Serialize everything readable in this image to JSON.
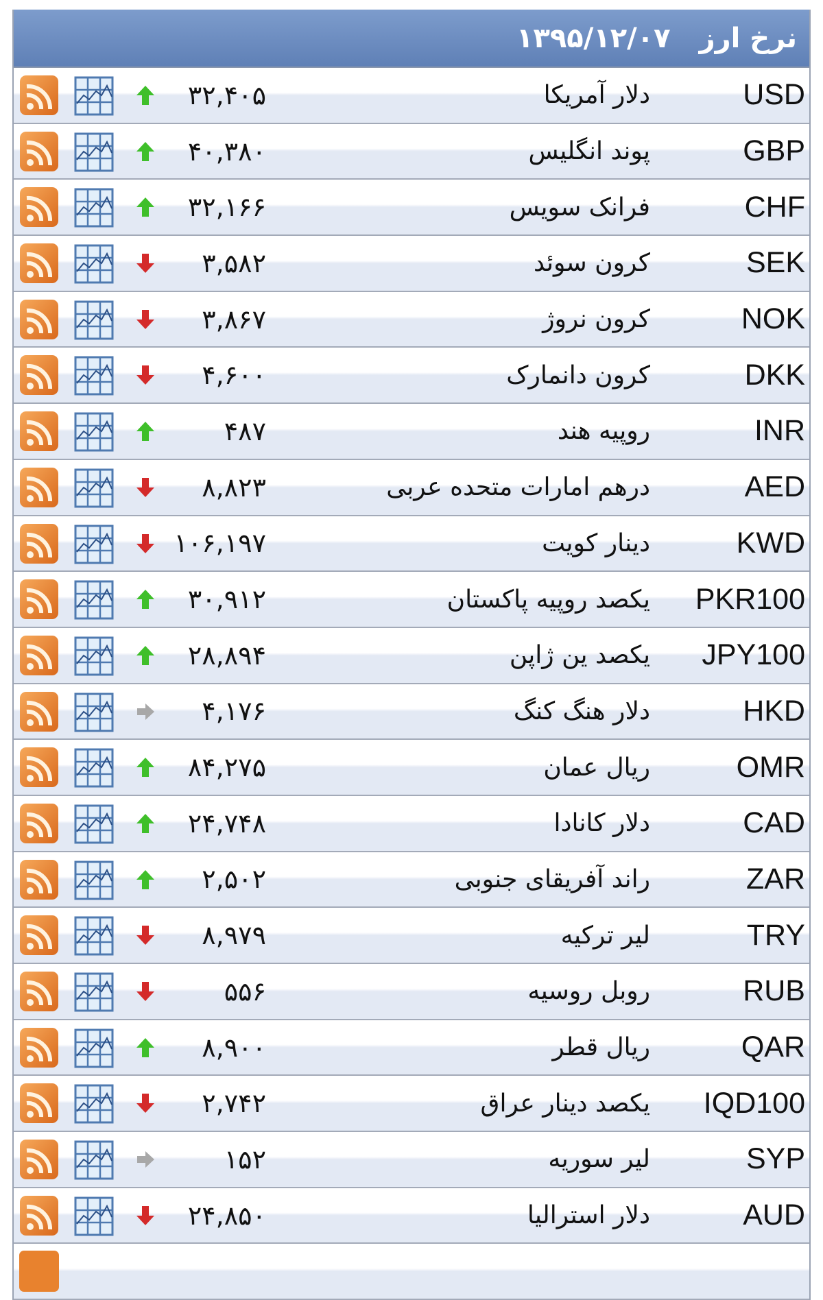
{
  "header": {
    "title": "نرخ ارز",
    "date": "۱۳۹۵/۱۲/۰۷"
  },
  "colors": {
    "up": "#3fbf2a",
    "down": "#d42a2a",
    "same": "#a8a8a8",
    "rss": "#e8822e",
    "header": "#6b8bc2"
  },
  "rows": [
    {
      "code": "USD",
      "name": "دلار آمریکا",
      "value": "۳۲,۴۰۵",
      "trend": "up"
    },
    {
      "code": "GBP",
      "name": "پوند انگلیس",
      "value": "۴۰,۳۸۰",
      "trend": "up"
    },
    {
      "code": "CHF",
      "name": "فرانک سویس",
      "value": "۳۲,۱۶۶",
      "trend": "up"
    },
    {
      "code": "SEK",
      "name": "کرون سوئد",
      "value": "۳,۵۸۲",
      "trend": "down"
    },
    {
      "code": "NOK",
      "name": "کرون نروژ",
      "value": "۳,۸۶۷",
      "trend": "down"
    },
    {
      "code": "DKK",
      "name": "کرون دانمارک",
      "value": "۴,۶۰۰",
      "trend": "down"
    },
    {
      "code": "INR",
      "name": "روپیه هند",
      "value": "۴۸۷",
      "trend": "up"
    },
    {
      "code": "AED",
      "name": "درهم امارات متحده عربی",
      "value": "۸,۸۲۳",
      "trend": "down"
    },
    {
      "code": "KWD",
      "name": "دینار کویت",
      "value": "۱۰۶,۱۹۷",
      "trend": "down"
    },
    {
      "code": "PKR100",
      "name": "یکصد روپیه پاکستان",
      "value": "۳۰,۹۱۲",
      "trend": "up"
    },
    {
      "code": "JPY100",
      "name": "یکصد ین ژاپن",
      "value": "۲۸,۸۹۴",
      "trend": "up"
    },
    {
      "code": "HKD",
      "name": "دلار هنگ کنگ",
      "value": "۴,۱۷۶",
      "trend": "same"
    },
    {
      "code": "OMR",
      "name": "ریال عمان",
      "value": "۸۴,۲۷۵",
      "trend": "up"
    },
    {
      "code": "CAD",
      "name": "دلار کانادا",
      "value": "۲۴,۷۴۸",
      "trend": "up"
    },
    {
      "code": "ZAR",
      "name": "راند آفریقای جنوبی",
      "value": "۲,۵۰۲",
      "trend": "up"
    },
    {
      "code": "TRY",
      "name": "لیر ترکیه",
      "value": "۸,۹۷۹",
      "trend": "down"
    },
    {
      "code": "RUB",
      "name": "روبل روسیه",
      "value": "۵۵۶",
      "trend": "down"
    },
    {
      "code": "QAR",
      "name": "ریال قطر",
      "value": "۸,۹۰۰",
      "trend": "up"
    },
    {
      "code": "IQD100",
      "name": "یکصد دینار عراق",
      "value": "۲,۷۴۲",
      "trend": "down"
    },
    {
      "code": "SYP",
      "name": "لیر سوریه",
      "value": "۱۵۲",
      "trend": "same"
    },
    {
      "code": "AUD",
      "name": "دلار استرالیا",
      "value": "۲۴,۸۵۰",
      "trend": "down"
    }
  ]
}
